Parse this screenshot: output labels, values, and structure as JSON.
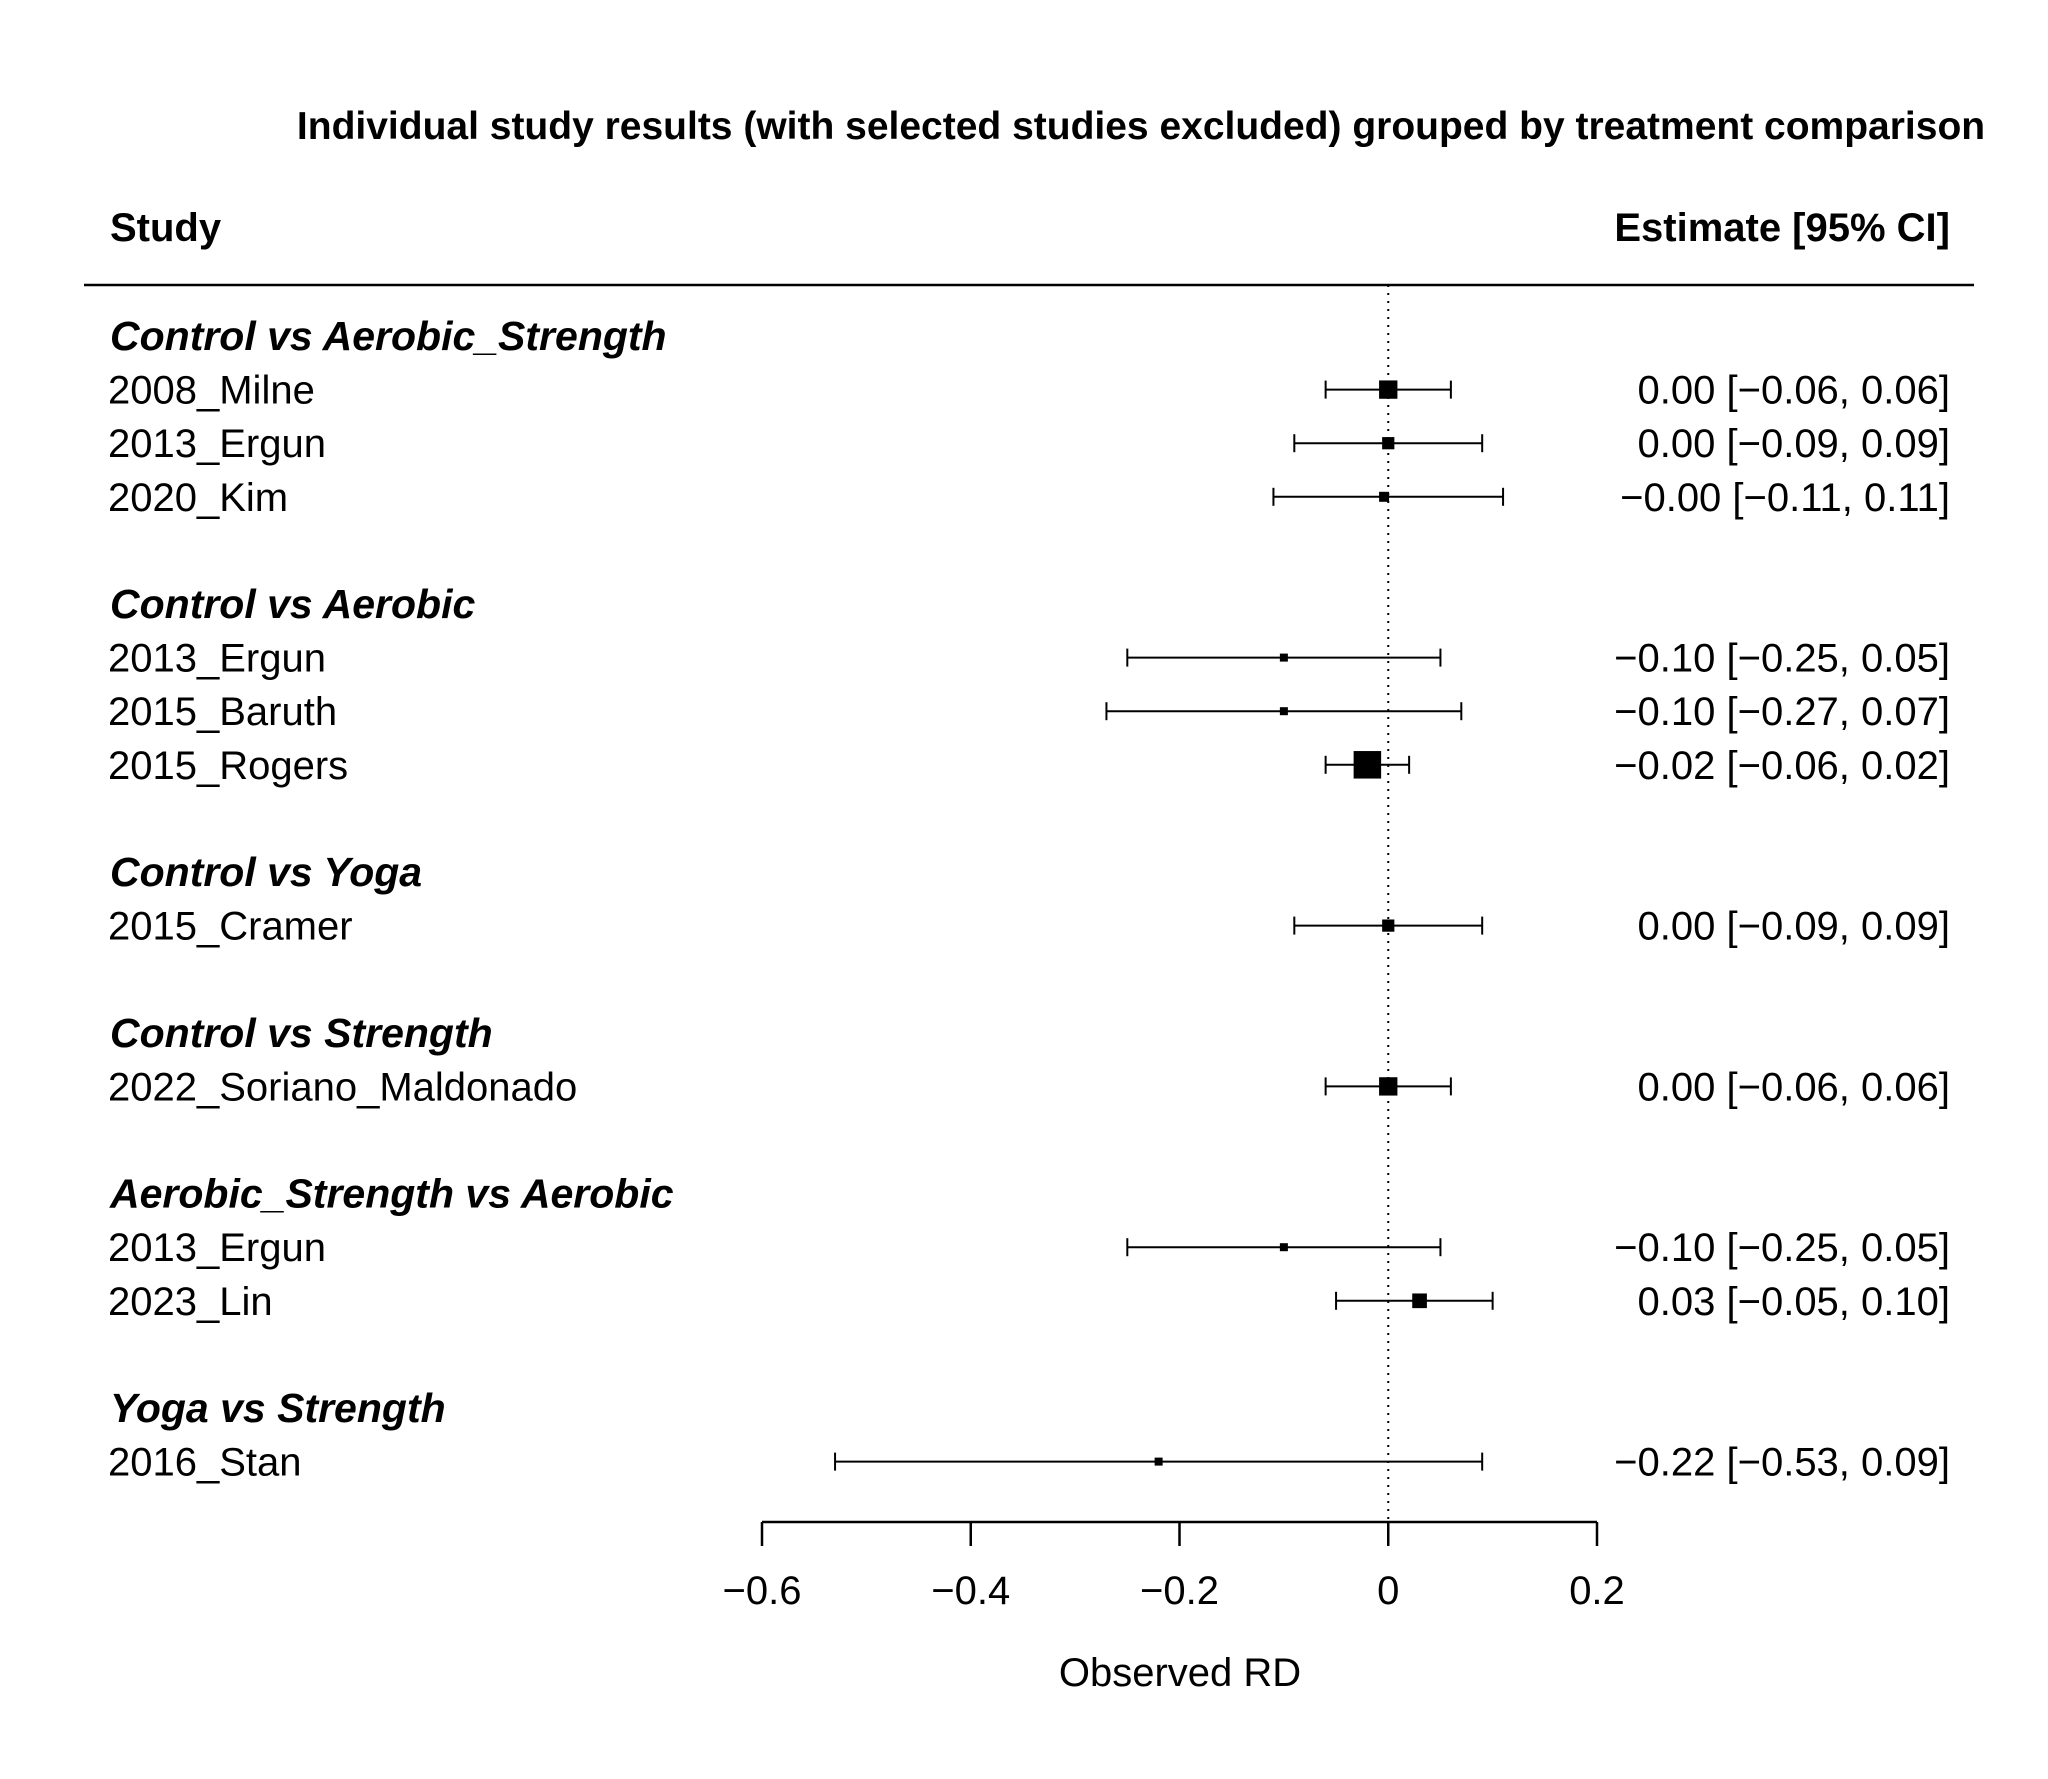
{
  "chart_data": {
    "type": "forest",
    "title": "Individual study results (with selected studies excluded) grouped by treatment comparison",
    "columns": {
      "left": "Study",
      "right": "Estimate [95% CI]"
    },
    "xlabel": "Observed  RD",
    "xlim": [
      -0.6,
      0.2
    ],
    "xticks": [
      {
        "value": -0.6,
        "label": "−0.6"
      },
      {
        "value": -0.4,
        "label": "−0.4"
      },
      {
        "value": -0.2,
        "label": "−0.2"
      },
      {
        "value": 0,
        "label": "0"
      },
      {
        "value": 0.2,
        "label": "0.2"
      }
    ],
    "reference_line": 0,
    "groups": [
      {
        "name": "Control vs Aerobic_Strength",
        "studies": [
          {
            "study": "2008_Milne",
            "estimate": 0.0,
            "lower": -0.06,
            "upper": 0.06,
            "label": "0.00 [−0.06, 0.06]"
          },
          {
            "study": "2013_Ergun",
            "estimate": 0.0,
            "lower": -0.09,
            "upper": 0.09,
            "label": "0.00 [−0.09, 0.09]"
          },
          {
            "study": "2020_Kim",
            "estimate": -0.004,
            "lower": -0.11,
            "upper": 0.11,
            "label": "−0.00 [−0.11, 0.11]"
          }
        ]
      },
      {
        "name": "Control vs Aerobic",
        "studies": [
          {
            "study": "2013_Ergun",
            "estimate": -0.1,
            "lower": -0.25,
            "upper": 0.05,
            "label": "−0.10 [−0.25, 0.05]"
          },
          {
            "study": "2015_Baruth",
            "estimate": -0.1,
            "lower": -0.27,
            "upper": 0.07,
            "label": "−0.10 [−0.27, 0.07]"
          },
          {
            "study": "2015_Rogers",
            "estimate": -0.02,
            "lower": -0.06,
            "upper": 0.02,
            "label": "−0.02 [−0.06, 0.02]"
          }
        ]
      },
      {
        "name": "Control vs Yoga",
        "studies": [
          {
            "study": "2015_Cramer",
            "estimate": 0.0,
            "lower": -0.09,
            "upper": 0.09,
            "label": "0.00 [−0.09, 0.09]"
          }
        ]
      },
      {
        "name": "Control vs Strength",
        "studies": [
          {
            "study": "2022_Soriano_Maldonado",
            "estimate": 0.0,
            "lower": -0.06,
            "upper": 0.06,
            "label": "0.00 [−0.06, 0.06]"
          }
        ]
      },
      {
        "name": "Aerobic_Strength vs Aerobic",
        "studies": [
          {
            "study": "2013_Ergun",
            "estimate": -0.1,
            "lower": -0.25,
            "upper": 0.05,
            "label": "−0.10 [−0.25, 0.05]"
          },
          {
            "study": "2023_Lin",
            "estimate": 0.03,
            "lower": -0.05,
            "upper": 0.1,
            "label": "0.03 [−0.05, 0.10]"
          }
        ]
      },
      {
        "name": "Yoga vs Strength",
        "studies": [
          {
            "study": "2016_Stan",
            "estimate": -0.22,
            "lower": -0.53,
            "upper": 0.09,
            "label": "−0.22 [−0.53, 0.09]"
          }
        ]
      }
    ]
  }
}
